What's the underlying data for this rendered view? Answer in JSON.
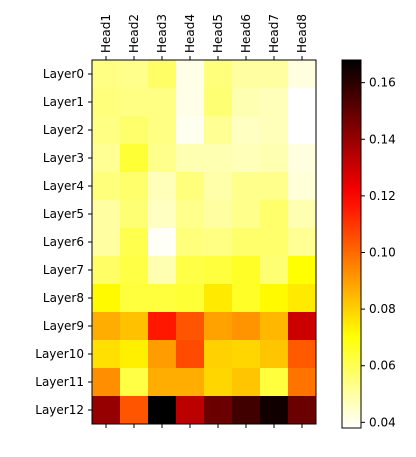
{
  "chart_data": {
    "type": "heatmap",
    "title": "",
    "xlabel": "",
    "ylabel": "",
    "columns": [
      "Head1",
      "Head2",
      "Head3",
      "Head4",
      "Head5",
      "Head6",
      "Head7",
      "Head8"
    ],
    "rows": [
      "Layer0",
      "Layer1",
      "Layer2",
      "Layer3",
      "Layer4",
      "Layer5",
      "Layer6",
      "Layer7",
      "Layer8",
      "Layer9",
      "Layer10",
      "Layer11",
      "Layer12"
    ],
    "values": [
      [
        0.054,
        0.053,
        0.058,
        0.041,
        0.055,
        0.05,
        0.05,
        0.042
      ],
      [
        0.055,
        0.054,
        0.054,
        0.041,
        0.056,
        0.048,
        0.047,
        0.038
      ],
      [
        0.054,
        0.057,
        0.054,
        0.04,
        0.052,
        0.046,
        0.047,
        0.038
      ],
      [
        0.052,
        0.064,
        0.053,
        0.048,
        0.048,
        0.047,
        0.048,
        0.042
      ],
      [
        0.055,
        0.057,
        0.047,
        0.055,
        0.049,
        0.053,
        0.053,
        0.043
      ],
      [
        0.05,
        0.056,
        0.046,
        0.053,
        0.05,
        0.053,
        0.057,
        0.048
      ],
      [
        0.05,
        0.061,
        0.039,
        0.055,
        0.054,
        0.057,
        0.057,
        0.052
      ],
      [
        0.058,
        0.062,
        0.048,
        0.062,
        0.063,
        0.066,
        0.056,
        0.071
      ],
      [
        0.072,
        0.063,
        0.063,
        0.064,
        0.075,
        0.066,
        0.072,
        0.075
      ],
      [
        0.087,
        0.083,
        0.116,
        0.104,
        0.089,
        0.092,
        0.085,
        0.13
      ],
      [
        0.077,
        0.074,
        0.09,
        0.106,
        0.08,
        0.079,
        0.082,
        0.103
      ],
      [
        0.093,
        0.062,
        0.087,
        0.087,
        0.079,
        0.082,
        0.063,
        0.098
      ],
      [
        0.14,
        0.104,
        0.168,
        0.133,
        0.148,
        0.156,
        0.165,
        0.148
      ]
    ],
    "colormap": "hot_r",
    "vmin": 0.038,
    "vmax": 0.168,
    "colorbar_ticks": [
      0.04,
      0.06,
      0.08,
      0.1,
      0.12,
      0.14,
      0.16
    ],
    "colorbar_tick_labels": [
      "0.04",
      "0.06",
      "0.08",
      "0.10",
      "0.12",
      "0.14",
      "0.16"
    ],
    "x_tick_position": "top",
    "grid": false
  }
}
